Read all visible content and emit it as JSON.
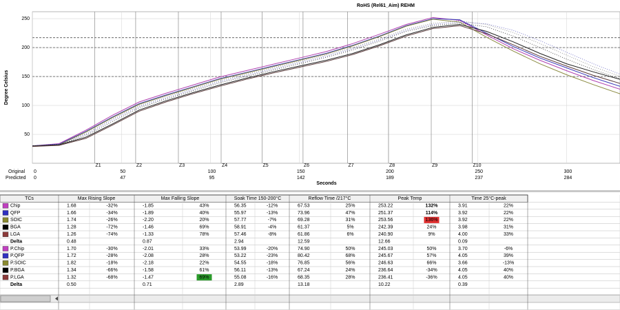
{
  "chart_data": {
    "type": "line",
    "title": "RoHS (Rel61_Aim) REHM",
    "y_label": "Degree Celsius",
    "x_label": "Seconds",
    "xlim": [
      0,
      330
    ],
    "ylim": [
      0,
      262
    ],
    "yticks": [
      50,
      100,
      150,
      200,
      250
    ],
    "xticks": [
      0,
      50,
      100,
      150,
      200,
      250,
      300
    ],
    "xtick_rows": [
      "Original",
      "Predicted"
    ],
    "predicted_ticks": [
      0,
      47,
      95,
      142,
      189,
      237,
      284
    ],
    "limit_lines": [
      150,
      200,
      217
    ],
    "zones": [
      {
        "label": "Z1",
        "x": 35
      },
      {
        "label": "Z2",
        "x": 58
      },
      {
        "label": "Z3",
        "x": 82
      },
      {
        "label": "Z4",
        "x": 106
      },
      {
        "label": "Z5",
        "x": 129
      },
      {
        "label": "Z6",
        "x": 152
      },
      {
        "label": "Z7",
        "x": 177
      },
      {
        "label": "Z8",
        "x": 200
      },
      {
        "label": "Z9",
        "x": 224
      },
      {
        "label": "Z10",
        "x": 247
      }
    ],
    "x": [
      0,
      15,
      30,
      45,
      60,
      75,
      90,
      105,
      120,
      135,
      150,
      165,
      180,
      195,
      210,
      225,
      240,
      255,
      270,
      285,
      300,
      315,
      330
    ],
    "series": [
      {
        "color": "#b040b0",
        "dash": false,
        "values": [
          30,
          34,
          57,
          83,
          106,
          121,
          135,
          149,
          160,
          171,
          182,
          193,
          207,
          223,
          240,
          252,
          247,
          222,
          198,
          178,
          160,
          143,
          128
        ]
      },
      {
        "color": "#3838b8",
        "dash": false,
        "values": [
          30,
          33,
          55,
          80,
          103,
          118,
          132,
          146,
          157,
          168,
          179,
          190,
          204,
          220,
          238,
          250,
          248,
          225,
          202,
          182,
          165,
          148,
          133
        ]
      },
      {
        "color": "#8a8a40",
        "dash": false,
        "values": [
          29,
          32,
          54,
          79,
          102,
          117,
          131,
          145,
          156,
          167,
          178,
          189,
          203,
          219,
          237,
          249,
          244,
          218,
          194,
          172,
          153,
          136,
          120
        ]
      },
      {
        "color": "#202020",
        "dash": false,
        "values": [
          30,
          32,
          45,
          68,
          92,
          108,
          122,
          135,
          147,
          158,
          168,
          178,
          190,
          205,
          222,
          235,
          240,
          228,
          210,
          190,
          172,
          158,
          145
        ]
      },
      {
        "color": "#5a3a3a",
        "dash": false,
        "values": [
          29,
          31,
          43,
          66,
          90,
          106,
          120,
          133,
          145,
          156,
          166,
          176,
          188,
          203,
          220,
          233,
          238,
          224,
          205,
          185,
          168,
          152,
          138
        ]
      },
      {
        "color": "#808080",
        "dash": true,
        "values": [
          30,
          33,
          52,
          77,
          100,
          115,
          129,
          143,
          154,
          165,
          176,
          187,
          200,
          215,
          232,
          242,
          246,
          240,
          226,
          207,
          187,
          167,
          150
        ]
      },
      {
        "color": "#6060c0",
        "dash": true,
        "values": [
          30,
          33,
          50,
          75,
          98,
          113,
          127,
          141,
          152,
          163,
          174,
          185,
          198,
          213,
          230,
          240,
          244,
          241,
          230,
          212,
          192,
          172,
          154
        ]
      },
      {
        "color": "#303030",
        "dash": true,
        "values": [
          30,
          32,
          48,
          72,
          96,
          111,
          125,
          139,
          150,
          161,
          172,
          183,
          196,
          211,
          228,
          238,
          242,
          236,
          220,
          200,
          180,
          162,
          146
        ]
      }
    ]
  },
  "table": {
    "columns": [
      "TCs",
      "Max Rising Slope",
      "Max Falling Slope",
      "Soak Time 150-200°C",
      "Reflow Time /217°C",
      "Peak Temp",
      "Time 25°C-peak"
    ],
    "rows": [
      {
        "name": "Chip",
        "color": "#c040c0",
        "cells": [
          [
            "1.68",
            "-32%"
          ],
          [
            "-1.85",
            "43%"
          ],
          [
            "56.35",
            "-12%"
          ],
          [
            "67.53",
            "25%"
          ],
          [
            "253.22",
            "132%"
          ],
          [
            "3.91",
            "22%"
          ]
        ]
      },
      {
        "name": "QFP",
        "color": "#3030c0",
        "cells": [
          [
            "1.66",
            "-34%"
          ],
          [
            "-1.89",
            "40%"
          ],
          [
            "55.97",
            "-13%"
          ],
          [
            "73.96",
            "47%"
          ],
          [
            "251.37",
            "114%"
          ],
          [
            "3.92",
            "22%"
          ]
        ]
      },
      {
        "name": "SOIC",
        "color": "#8a8a30",
        "cells": [
          [
            "1.74",
            "-26%"
          ],
          [
            "-2.20",
            "20%"
          ],
          [
            "57.77",
            "-7%"
          ],
          [
            "69.28",
            "31%"
          ],
          [
            "253.56",
            "136%"
          ],
          [
            "3.92",
            "22%"
          ]
        ]
      },
      {
        "name": "BGA",
        "color": "#000000",
        "cells": [
          [
            "1.28",
            "-72%"
          ],
          [
            "-1.46",
            "69%"
          ],
          [
            "58.91",
            "-4%"
          ],
          [
            "61.37",
            "5%"
          ],
          [
            "242.39",
            "24%"
          ],
          [
            "3.98",
            "31%"
          ]
        ]
      },
      {
        "name": "LGA",
        "color": "#8b3a3a",
        "cells": [
          [
            "1.26",
            "-74%"
          ],
          [
            "-1.33",
            "78%"
          ],
          [
            "57.46",
            "-8%"
          ],
          [
            "61.86",
            "6%"
          ],
          [
            "240.90",
            "9%"
          ],
          [
            "4.00",
            "33%"
          ]
        ]
      },
      {
        "name": "Delta",
        "cells": [
          [
            "0.48"
          ],
          [
            "0.87"
          ],
          [
            "2.94"
          ],
          [
            "12.59"
          ],
          [
            "12.66"
          ],
          [
            "0.09"
          ]
        ]
      },
      {
        "name": "P.Chip",
        "color": "#c040c0",
        "cells": [
          [
            "1.70",
            "-30%"
          ],
          [
            "-2.01",
            "33%"
          ],
          [
            "53.99",
            "-20%"
          ],
          [
            "74.90",
            "50%"
          ],
          [
            "245.03",
            "50%"
          ],
          [
            "3.70",
            "-6%"
          ]
        ]
      },
      {
        "name": "P.QFP",
        "color": "#3030c0",
        "cells": [
          [
            "1.72",
            "-28%"
          ],
          [
            "-2.08",
            "28%"
          ],
          [
            "53.22",
            "-23%"
          ],
          [
            "80.42",
            "68%"
          ],
          [
            "245.67",
            "57%"
          ],
          [
            "4.05",
            "39%"
          ]
        ]
      },
      {
        "name": "P.SOIC",
        "color": "#8a8a30",
        "cells": [
          [
            "1.82",
            "-18%"
          ],
          [
            "-2.18",
            "22%"
          ],
          [
            "54.55",
            "-18%"
          ],
          [
            "76.85",
            "56%"
          ],
          [
            "246.63",
            "66%"
          ],
          [
            "3.66",
            "-13%"
          ]
        ]
      },
      {
        "name": "P.BGA",
        "color": "#000000",
        "cells": [
          [
            "1.34",
            "-66%"
          ],
          [
            "-1.58",
            "61%"
          ],
          [
            "56.11",
            "-13%"
          ],
          [
            "67.24",
            "24%"
          ],
          [
            "236.64",
            "-34%"
          ],
          [
            "4.05",
            "40%"
          ]
        ]
      },
      {
        "name": "P.LGA",
        "color": "#8b3a3a",
        "cells": [
          [
            "1.32",
            "-68%"
          ],
          [
            "-1.47",
            "69%"
          ],
          [
            "55.08",
            "-16%"
          ],
          [
            "68.35",
            "28%"
          ],
          [
            "236.41",
            "-36%"
          ],
          [
            "4.05",
            "40%"
          ]
        ]
      },
      {
        "name": "Delta",
        "cells": [
          [
            "0.50"
          ],
          [
            "0.71"
          ],
          [
            "2.89"
          ],
          [
            "13.18"
          ],
          [
            "10.22"
          ],
          [
            "0.39"
          ]
        ]
      }
    ]
  }
}
